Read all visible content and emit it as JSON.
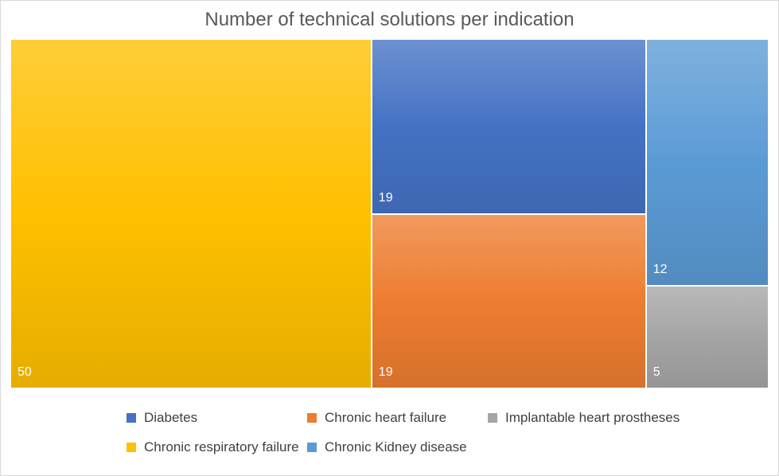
{
  "chart_data": {
    "type": "treemap",
    "title": "Number of technical solutions per indication",
    "items": [
      {
        "name": "Chronic respiratory failure",
        "value": 50,
        "color": "#FFC000"
      },
      {
        "name": "Diabetes",
        "value": 19,
        "color": "#4472C4"
      },
      {
        "name": "Chronic heart failure",
        "value": 19,
        "color": "#ED7D31"
      },
      {
        "name": "Chronic Kidney disease",
        "value": 12,
        "color": "#5B9BD5"
      },
      {
        "name": "Implantable heart prostheses",
        "value": 5,
        "color": "#A5A5A5"
      }
    ],
    "legend_order": [
      "Diabetes",
      "Chronic heart failure",
      "Implantable heart prostheses",
      "Chronic respiratory failure",
      "Chronic Kidney disease"
    ],
    "legend_position": "bottom"
  }
}
